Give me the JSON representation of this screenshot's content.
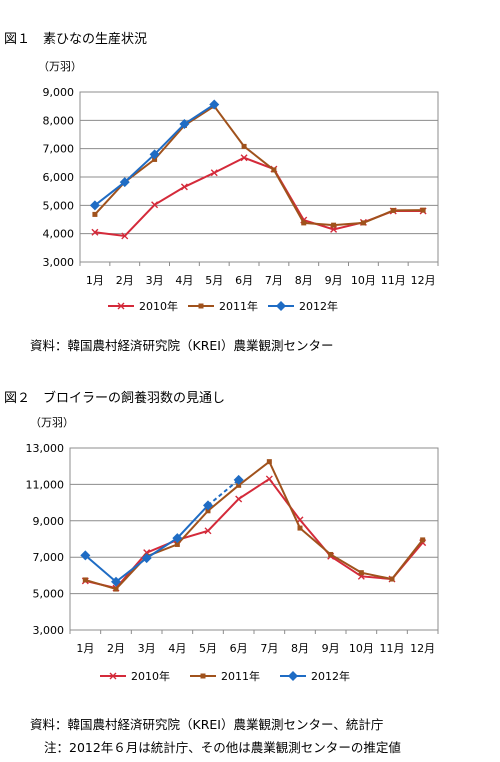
{
  "figures": [
    {
      "title": "図１　素ひなの生産状況",
      "source": "資料：韓国農村経済研究院（KREI）農業観測センター",
      "note": ""
    },
    {
      "title": "図２　ブロイラーの飼養羽数の見通し",
      "source": "資料：韓国農村経済研究院（KREI）農業観測センター、統計庁",
      "note": "注：2012年６月は統計庁、その他は農業観測センターの推定値"
    }
  ],
  "colors": {
    "2010": "#d42a3a",
    "2011": "#a0521c",
    "2012": "#1f6cc4"
  },
  "chart_data": [
    {
      "type": "line",
      "unit": "（万羽）",
      "categories": [
        "1月",
        "2月",
        "3月",
        "4月",
        "5月",
        "6月",
        "7月",
        "8月",
        "9月",
        "10月",
        "11月",
        "12月"
      ],
      "ylim": [
        3000,
        9000
      ],
      "yticks": [
        "3,000",
        "4,000",
        "5,000",
        "6,000",
        "7,000",
        "8,000",
        "9,000"
      ],
      "grid": true,
      "legend": "bottom",
      "series": [
        {
          "name": "2010年",
          "marker": "x",
          "values": [
            4050,
            3920,
            5020,
            5650,
            6150,
            6680,
            6280,
            4480,
            4150,
            4400,
            4800,
            4800
          ]
        },
        {
          "name": "2011年",
          "marker": "square",
          "values": [
            4680,
            5820,
            6620,
            7820,
            8500,
            7080,
            6250,
            4380,
            4300,
            4380,
            4820,
            4830
          ]
        },
        {
          "name": "2012年",
          "marker": "diamond",
          "values": [
            5000,
            5820,
            6800,
            7870,
            8560,
            null,
            null,
            null,
            null,
            null,
            null,
            null
          ]
        }
      ]
    },
    {
      "type": "line",
      "unit": "（万羽）",
      "categories": [
        "1月",
        "2月",
        "3月",
        "4月",
        "5月",
        "6月",
        "7月",
        "8月",
        "9月",
        "10月",
        "11月",
        "12月"
      ],
      "ylim": [
        3000,
        13000
      ],
      "yticks": [
        "3,000",
        "5,000",
        "7,000",
        "9,000",
        "11,000",
        "13,000"
      ],
      "grid": true,
      "legend": "bottom",
      "series": [
        {
          "name": "2010年",
          "marker": "x",
          "values": [
            5700,
            5300,
            7250,
            7950,
            8450,
            10200,
            11300,
            9050,
            7050,
            5950,
            5800,
            7800
          ]
        },
        {
          "name": "2011年",
          "marker": "square",
          "values": [
            5750,
            5250,
            7050,
            7700,
            9550,
            10950,
            12250,
            8600,
            7150,
            6150,
            5800,
            7950
          ]
        },
        {
          "name": "2012年",
          "marker": "diamond",
          "values": [
            7100,
            5650,
            6950,
            8050,
            9850,
            11250,
            null,
            null,
            null,
            null,
            null,
            null
          ],
          "dashed_last_segment": true
        }
      ]
    }
  ]
}
